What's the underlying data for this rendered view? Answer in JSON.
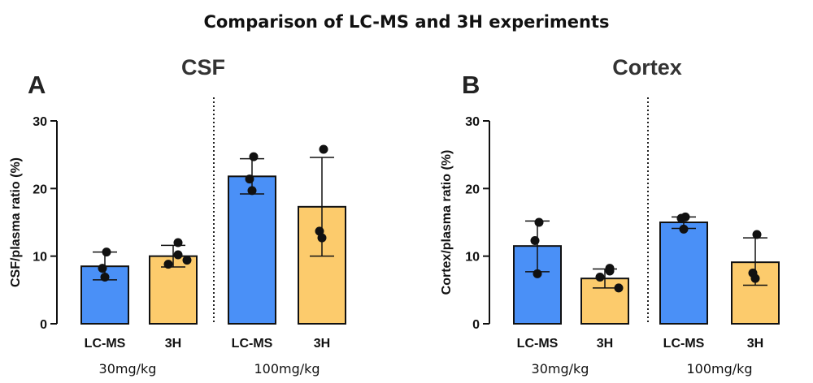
{
  "title": "Comparison of LC-MS and 3H experiments",
  "colors": {
    "LC-MS": "#4a90f7",
    "3H": "#fccb6c"
  },
  "chart_data": [
    {
      "type": "bar",
      "panel": "A",
      "title": "CSF",
      "ylabel": "CSF/plasma ratio (%)",
      "ylim": [
        0,
        30
      ],
      "yticks": [
        0,
        10,
        20,
        30
      ],
      "groups": [
        "30mg/kg",
        "100mg/kg"
      ],
      "bars": [
        {
          "label": "LC-MS",
          "group": "30mg/kg",
          "value": 8.5,
          "err_low": 6.5,
          "err_high": 10.6,
          "points": [
            10.6,
            8.2,
            6.9
          ]
        },
        {
          "label": "3H",
          "group": "30mg/kg",
          "value": 10.0,
          "err_low": 8.4,
          "err_high": 11.6,
          "points": [
            12.0,
            10.2,
            8.8,
            9.4
          ]
        },
        {
          "label": "LC-MS",
          "group": "100mg/kg",
          "value": 21.8,
          "err_low": 19.2,
          "err_high": 24.4,
          "points": [
            24.7,
            21.4,
            19.7
          ]
        },
        {
          "label": "3H",
          "group": "100mg/kg",
          "value": 17.3,
          "err_low": 10.0,
          "err_high": 24.6,
          "points": [
            25.8,
            13.7,
            12.7
          ]
        }
      ]
    },
    {
      "type": "bar",
      "panel": "B",
      "title": "Cortex",
      "ylabel": "Cortex/plasma ratio (%)",
      "ylim": [
        0,
        30
      ],
      "yticks": [
        0,
        10,
        20,
        30
      ],
      "groups": [
        "30mg/kg",
        "100mg/kg"
      ],
      "bars": [
        {
          "label": "LC-MS",
          "group": "30mg/kg",
          "value": 11.5,
          "err_low": 7.7,
          "err_high": 15.2,
          "points": [
            15.0,
            12.3,
            7.4
          ]
        },
        {
          "label": "3H",
          "group": "30mg/kg",
          "value": 6.7,
          "err_low": 5.3,
          "err_high": 8.1,
          "points": [
            8.2,
            7.8,
            6.9,
            5.3
          ]
        },
        {
          "label": "LC-MS",
          "group": "100mg/kg",
          "value": 15.0,
          "err_low": 14.1,
          "err_high": 15.8,
          "points": [
            15.8,
            15.6,
            14.0
          ]
        },
        {
          "label": "3H",
          "group": "100mg/kg",
          "value": 9.1,
          "err_low": 5.7,
          "err_high": 12.7,
          "points": [
            13.2,
            7.5,
            6.7
          ]
        }
      ]
    }
  ]
}
